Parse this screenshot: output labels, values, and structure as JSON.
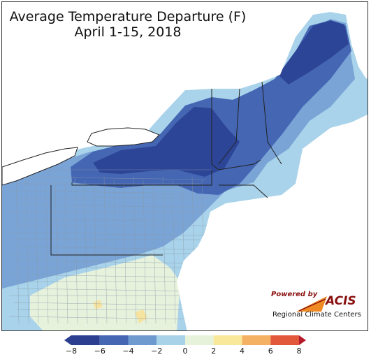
{
  "title": {
    "line1": "Average Temperature Departure (F)",
    "line2": "April 1-15, 2018"
  },
  "logo": {
    "powered_by": "Powered by",
    "name": "ACIS",
    "subtitle": "Regional Climate Centers"
  },
  "colorbar": {
    "ticks": [
      "−8",
      "−6",
      "−4",
      "−2",
      "0",
      "2",
      "4",
      "6",
      "8"
    ],
    "colors": [
      "#2b3e8f",
      "#3d5fae",
      "#6f9ad0",
      "#a8d2e8",
      "#e7f2da",
      "#f9e89a",
      "#f4b163",
      "#e2583b",
      "#b51b2a"
    ]
  },
  "map_colors": {
    "water": "#ffffff",
    "deep_cold": "#2d4596",
    "cold": "#4466b3",
    "cool": "#7aa4d6",
    "mild": "#a9d3ea",
    "near_normal": "#e6f2dc",
    "warm": "#f7e3a0",
    "border": "#222222",
    "county": "#8899aa"
  }
}
